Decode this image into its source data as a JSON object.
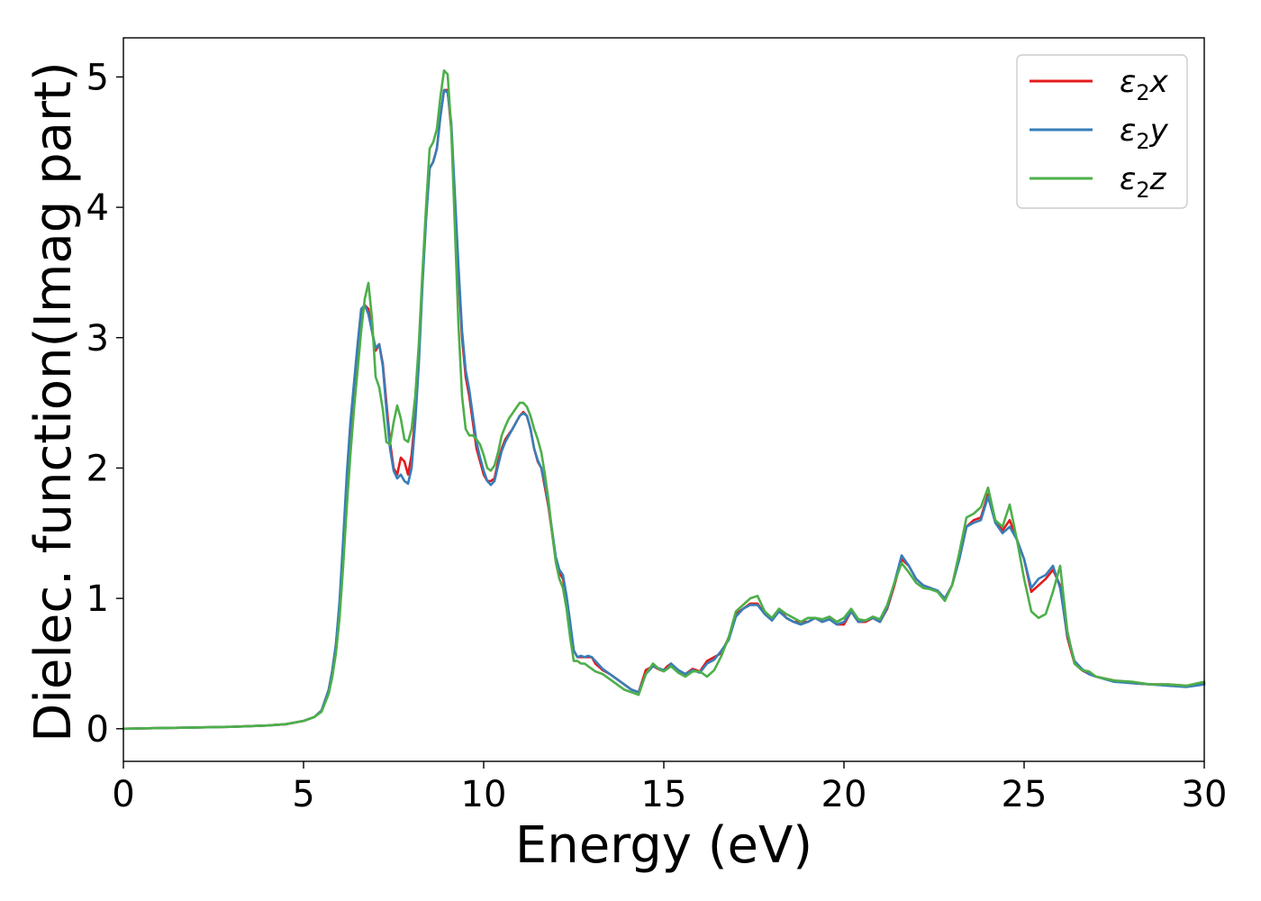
{
  "chart_data": {
    "type": "line",
    "title": "",
    "xlabel": "Energy (eV)",
    "ylabel": "Dielec. function(Imag part)",
    "xlim": [
      0,
      30
    ],
    "ylim": [
      -0.25,
      5.3
    ],
    "xticks": [
      0,
      5,
      10,
      15,
      20,
      25,
      30
    ],
    "yticks": [
      0,
      1,
      2,
      3,
      4,
      5
    ],
    "grid": false,
    "legend_position": "top-right",
    "series": [
      {
        "name": "ε₂x",
        "legend_base": "ε",
        "legend_sub": "2",
        "legend_axis": "x",
        "color": "#e41a1c",
        "x": [
          0,
          1,
          2,
          3,
          4,
          4.5,
          5,
          5.3,
          5.5,
          5.7,
          5.8,
          5.9,
          6.0,
          6.1,
          6.2,
          6.3,
          6.4,
          6.5,
          6.6,
          6.7,
          6.8,
          6.9,
          7.0,
          7.1,
          7.2,
          7.3,
          7.4,
          7.5,
          7.6,
          7.7,
          7.8,
          7.9,
          8.0,
          8.1,
          8.2,
          8.3,
          8.4,
          8.5,
          8.6,
          8.7,
          8.8,
          8.9,
          9.0,
          9.1,
          9.2,
          9.3,
          9.4,
          9.5,
          9.6,
          9.7,
          9.8,
          9.9,
          10.0,
          10.1,
          10.2,
          10.3,
          10.4,
          10.5,
          10.6,
          10.7,
          10.8,
          10.9,
          11.0,
          11.1,
          11.2,
          11.3,
          11.4,
          11.5,
          11.6,
          11.7,
          11.8,
          11.9,
          12.0,
          12.1,
          12.2,
          12.3,
          12.4,
          12.5,
          12.6,
          12.7,
          12.8,
          12.9,
          13.0,
          13.1,
          13.3,
          13.5,
          13.7,
          13.9,
          14.1,
          14.3,
          14.5,
          14.7,
          14.9,
          15.0,
          15.1,
          15.2,
          15.4,
          15.6,
          15.8,
          16.0,
          16.2,
          16.4,
          16.6,
          16.8,
          17.0,
          17.2,
          17.4,
          17.6,
          17.8,
          18.0,
          18.2,
          18.4,
          18.6,
          18.8,
          19.0,
          19.2,
          19.4,
          19.6,
          19.8,
          20.0,
          20.2,
          20.4,
          20.6,
          20.8,
          21.0,
          21.2,
          21.4,
          21.6,
          21.8,
          22.0,
          22.2,
          22.4,
          22.6,
          22.8,
          23.0,
          23.2,
          23.4,
          23.6,
          23.8,
          24.0,
          24.2,
          24.4,
          24.6,
          24.8,
          25.0,
          25.2,
          25.4,
          25.6,
          25.8,
          26.0,
          26.2,
          26.4,
          26.6,
          26.8,
          27.0,
          27.5,
          28.0,
          28.5,
          29.0,
          29.5,
          30.0
        ],
        "y": [
          0,
          0.005,
          0.01,
          0.015,
          0.025,
          0.035,
          0.06,
          0.09,
          0.14,
          0.3,
          0.45,
          0.65,
          0.95,
          1.4,
          1.9,
          2.3,
          2.6,
          2.9,
          3.2,
          3.25,
          3.22,
          3.05,
          2.9,
          2.95,
          2.8,
          2.5,
          2.2,
          2.0,
          1.95,
          2.08,
          2.05,
          1.95,
          2.1,
          2.4,
          2.85,
          3.45,
          3.95,
          4.3,
          4.35,
          4.45,
          4.7,
          4.9,
          4.9,
          4.6,
          4.05,
          3.5,
          3.0,
          2.7,
          2.55,
          2.35,
          2.15,
          2.05,
          1.95,
          1.9,
          1.9,
          1.92,
          2.05,
          2.15,
          2.22,
          2.26,
          2.3,
          2.35,
          2.4,
          2.43,
          2.4,
          2.3,
          2.15,
          2.05,
          2.0,
          1.85,
          1.7,
          1.5,
          1.3,
          1.2,
          1.15,
          1.0,
          0.8,
          0.6,
          0.55,
          0.55,
          0.55,
          0.55,
          0.55,
          0.5,
          0.45,
          0.42,
          0.38,
          0.34,
          0.3,
          0.28,
          0.45,
          0.48,
          0.45,
          0.45,
          0.48,
          0.5,
          0.44,
          0.42,
          0.46,
          0.44,
          0.52,
          0.55,
          0.58,
          0.7,
          0.88,
          0.92,
          0.96,
          0.96,
          0.88,
          0.84,
          0.92,
          0.85,
          0.82,
          0.82,
          0.82,
          0.85,
          0.82,
          0.84,
          0.8,
          0.8,
          0.9,
          0.82,
          0.82,
          0.85,
          0.82,
          0.92,
          1.1,
          1.3,
          1.25,
          1.15,
          1.1,
          1.08,
          1.05,
          1.0,
          1.1,
          1.3,
          1.55,
          1.6,
          1.62,
          1.8,
          1.6,
          1.52,
          1.6,
          1.45,
          1.3,
          1.05,
          1.1,
          1.15,
          1.22,
          1.1,
          0.7,
          0.5,
          0.45,
          0.42,
          0.4,
          0.37,
          0.35,
          0.34,
          0.34,
          0.33,
          0.35
        ]
      },
      {
        "name": "ε₂y",
        "legend_base": "ε",
        "legend_sub": "2",
        "legend_axis": "y",
        "color": "#377eb8",
        "x": [
          0,
          1,
          2,
          3,
          4,
          4.5,
          5,
          5.3,
          5.5,
          5.7,
          5.8,
          5.9,
          6.0,
          6.1,
          6.2,
          6.3,
          6.4,
          6.5,
          6.6,
          6.7,
          6.8,
          6.9,
          7.0,
          7.1,
          7.2,
          7.3,
          7.4,
          7.5,
          7.6,
          7.7,
          7.8,
          7.9,
          8.0,
          8.1,
          8.2,
          8.3,
          8.4,
          8.5,
          8.6,
          8.7,
          8.8,
          8.9,
          9.0,
          9.1,
          9.2,
          9.3,
          9.4,
          9.5,
          9.6,
          9.7,
          9.8,
          9.9,
          10.0,
          10.1,
          10.2,
          10.3,
          10.4,
          10.5,
          10.6,
          10.7,
          10.8,
          10.9,
          11.0,
          11.1,
          11.2,
          11.3,
          11.4,
          11.5,
          11.6,
          11.7,
          11.8,
          11.9,
          12.0,
          12.1,
          12.2,
          12.3,
          12.4,
          12.5,
          12.6,
          12.7,
          12.8,
          12.9,
          13.0,
          13.1,
          13.3,
          13.5,
          13.7,
          13.9,
          14.1,
          14.3,
          14.5,
          14.7,
          14.9,
          15.0,
          15.1,
          15.2,
          15.4,
          15.6,
          15.8,
          16.0,
          16.2,
          16.4,
          16.6,
          16.8,
          17.0,
          17.2,
          17.4,
          17.6,
          17.8,
          18.0,
          18.2,
          18.4,
          18.6,
          18.8,
          19.0,
          19.2,
          19.4,
          19.6,
          19.8,
          20.0,
          20.2,
          20.4,
          20.6,
          20.8,
          21.0,
          21.2,
          21.4,
          21.6,
          21.8,
          22.0,
          22.2,
          22.4,
          22.6,
          22.8,
          23.0,
          23.2,
          23.4,
          23.6,
          23.8,
          24.0,
          24.2,
          24.4,
          24.6,
          24.8,
          25.0,
          25.2,
          25.4,
          25.6,
          25.8,
          26.0,
          26.2,
          26.4,
          26.6,
          26.8,
          27.0,
          27.5,
          28.0,
          28.5,
          29.0,
          29.5,
          30.0
        ],
        "y": [
          0,
          0.005,
          0.01,
          0.015,
          0.025,
          0.035,
          0.06,
          0.09,
          0.14,
          0.3,
          0.45,
          0.65,
          0.98,
          1.45,
          1.95,
          2.35,
          2.65,
          2.95,
          3.22,
          3.25,
          3.18,
          3.05,
          2.92,
          2.95,
          2.78,
          2.45,
          2.15,
          1.98,
          1.92,
          1.95,
          1.9,
          1.88,
          2.0,
          2.35,
          2.8,
          3.4,
          3.9,
          4.3,
          4.35,
          4.45,
          4.7,
          4.9,
          4.88,
          4.65,
          4.1,
          3.55,
          3.05,
          2.75,
          2.6,
          2.4,
          2.2,
          2.08,
          1.98,
          1.9,
          1.87,
          1.9,
          2.02,
          2.13,
          2.2,
          2.25,
          2.3,
          2.35,
          2.4,
          2.42,
          2.4,
          2.3,
          2.15,
          2.06,
          2.0,
          1.88,
          1.72,
          1.52,
          1.32,
          1.22,
          1.18,
          1.02,
          0.82,
          0.6,
          0.55,
          0.56,
          0.55,
          0.56,
          0.55,
          0.52,
          0.46,
          0.42,
          0.38,
          0.34,
          0.3,
          0.28,
          0.42,
          0.48,
          0.46,
          0.45,
          0.46,
          0.5,
          0.45,
          0.42,
          0.45,
          0.43,
          0.5,
          0.53,
          0.6,
          0.68,
          0.86,
          0.92,
          0.95,
          0.95,
          0.88,
          0.83,
          0.9,
          0.85,
          0.82,
          0.8,
          0.82,
          0.85,
          0.82,
          0.84,
          0.8,
          0.82,
          0.9,
          0.82,
          0.83,
          0.85,
          0.82,
          0.93,
          1.12,
          1.33,
          1.25,
          1.15,
          1.1,
          1.08,
          1.06,
          1.0,
          1.1,
          1.3,
          1.55,
          1.58,
          1.6,
          1.78,
          1.58,
          1.5,
          1.55,
          1.45,
          1.3,
          1.08,
          1.15,
          1.18,
          1.25,
          1.08,
          0.72,
          0.52,
          0.46,
          0.42,
          0.4,
          0.36,
          0.35,
          0.34,
          0.33,
          0.32,
          0.34
        ]
      },
      {
        "name": "ε₂z",
        "legend_base": "ε",
        "legend_sub": "2",
        "legend_axis": "z",
        "color": "#4daf4a",
        "x": [
          0,
          1,
          2,
          3,
          4,
          4.5,
          5,
          5.3,
          5.5,
          5.7,
          5.8,
          5.9,
          6.0,
          6.1,
          6.2,
          6.3,
          6.4,
          6.5,
          6.6,
          6.7,
          6.8,
          6.9,
          7.0,
          7.1,
          7.2,
          7.3,
          7.4,
          7.5,
          7.6,
          7.7,
          7.8,
          7.9,
          8.0,
          8.1,
          8.2,
          8.3,
          8.4,
          8.5,
          8.6,
          8.7,
          8.8,
          8.9,
          9.0,
          9.1,
          9.2,
          9.3,
          9.4,
          9.5,
          9.6,
          9.7,
          9.8,
          9.9,
          10.0,
          10.1,
          10.2,
          10.3,
          10.4,
          10.5,
          10.6,
          10.7,
          10.8,
          10.9,
          11.0,
          11.1,
          11.2,
          11.3,
          11.4,
          11.5,
          11.6,
          11.7,
          11.8,
          11.9,
          12.0,
          12.1,
          12.2,
          12.3,
          12.4,
          12.5,
          12.6,
          12.7,
          12.8,
          12.9,
          13.0,
          13.1,
          13.3,
          13.5,
          13.7,
          13.9,
          14.1,
          14.3,
          14.5,
          14.7,
          14.9,
          15.0,
          15.1,
          15.2,
          15.4,
          15.6,
          15.8,
          16.0,
          16.2,
          16.4,
          16.6,
          16.8,
          17.0,
          17.2,
          17.4,
          17.6,
          17.8,
          18.0,
          18.2,
          18.4,
          18.6,
          18.8,
          19.0,
          19.2,
          19.4,
          19.6,
          19.8,
          20.0,
          20.2,
          20.4,
          20.6,
          20.8,
          21.0,
          21.2,
          21.4,
          21.6,
          21.8,
          22.0,
          22.2,
          22.4,
          22.6,
          22.8,
          23.0,
          23.2,
          23.4,
          23.6,
          23.8,
          24.0,
          24.2,
          24.4,
          24.6,
          24.8,
          25.0,
          25.2,
          25.4,
          25.6,
          25.8,
          26.0,
          26.2,
          26.4,
          26.6,
          26.8,
          27.0,
          27.5,
          28.0,
          28.5,
          29.0,
          29.5,
          30.0
        ],
        "y": [
          0,
          0.005,
          0.01,
          0.015,
          0.025,
          0.035,
          0.06,
          0.09,
          0.13,
          0.27,
          0.4,
          0.58,
          0.85,
          1.25,
          1.7,
          2.1,
          2.45,
          2.75,
          3.05,
          3.3,
          3.42,
          3.15,
          2.7,
          2.62,
          2.45,
          2.2,
          2.18,
          2.35,
          2.48,
          2.38,
          2.22,
          2.2,
          2.3,
          2.55,
          2.95,
          3.5,
          4.0,
          4.45,
          4.5,
          4.6,
          4.85,
          5.05,
          5.02,
          4.6,
          3.85,
          3.1,
          2.55,
          2.3,
          2.25,
          2.25,
          2.22,
          2.18,
          2.1,
          2.0,
          1.98,
          2.02,
          2.12,
          2.25,
          2.32,
          2.38,
          2.42,
          2.46,
          2.5,
          2.5,
          2.47,
          2.4,
          2.3,
          2.22,
          2.12,
          1.95,
          1.75,
          1.5,
          1.28,
          1.15,
          1.08,
          0.92,
          0.7,
          0.52,
          0.52,
          0.5,
          0.5,
          0.48,
          0.46,
          0.44,
          0.42,
          0.38,
          0.34,
          0.3,
          0.28,
          0.26,
          0.42,
          0.5,
          0.45,
          0.44,
          0.46,
          0.48,
          0.43,
          0.4,
          0.44,
          0.44,
          0.4,
          0.45,
          0.56,
          0.7,
          0.9,
          0.95,
          1.0,
          1.02,
          0.9,
          0.85,
          0.92,
          0.88,
          0.85,
          0.82,
          0.85,
          0.85,
          0.84,
          0.86,
          0.82,
          0.85,
          0.92,
          0.84,
          0.83,
          0.86,
          0.84,
          0.95,
          1.12,
          1.27,
          1.2,
          1.12,
          1.08,
          1.07,
          1.05,
          0.98,
          1.1,
          1.35,
          1.62,
          1.65,
          1.7,
          1.85,
          1.6,
          1.55,
          1.72,
          1.45,
          1.15,
          0.9,
          0.85,
          0.88,
          1.05,
          1.25,
          0.75,
          0.5,
          0.45,
          0.44,
          0.4,
          0.37,
          0.36,
          0.34,
          0.34,
          0.33,
          0.36
        ]
      }
    ]
  }
}
